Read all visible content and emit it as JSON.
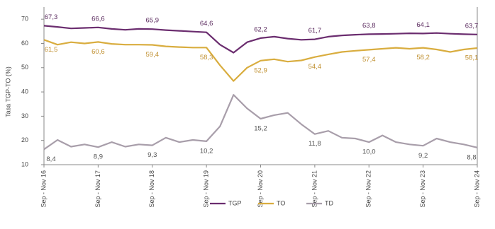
{
  "chart_data": {
    "type": "line",
    "y_label": "Tasa TGP-TO (%)",
    "categories": [
      "Sep - Nov 16",
      null,
      null,
      null,
      "Sep - Nov 17",
      null,
      null,
      null,
      "Sep - Nov 18",
      null,
      null,
      null,
      "Sep - Nov 19",
      null,
      null,
      null,
      "Sep - Nov 20",
      null,
      null,
      null,
      "Sep - Nov 21",
      null,
      null,
      null,
      "Sep - Nov 22",
      null,
      null,
      null,
      "Sep - Nov 23",
      null,
      null,
      null,
      "Sep - Nov 24"
    ],
    "series": [
      {
        "name": "TGP",
        "color": "#6b2d6f",
        "label_color": "#5a2a5e",
        "values": [
          67.3,
          66.8,
          66.2,
          66.4,
          66.6,
          66.0,
          65.6,
          66.0,
          65.9,
          65.5,
          65.2,
          64.9,
          64.6,
          59.5,
          56.2,
          60.5,
          62.2,
          62.8,
          62.0,
          61.5,
          61.7,
          62.8,
          63.3,
          63.6,
          63.8,
          63.9,
          64.0,
          64.2,
          64.1,
          64.3,
          64.0,
          63.8,
          63.7
        ],
        "value_labels": [
          "67,3",
          null,
          null,
          null,
          "66,6",
          null,
          null,
          null,
          "65,9",
          null,
          null,
          null,
          "64,6",
          null,
          null,
          null,
          "62,2",
          null,
          null,
          null,
          "61,7",
          null,
          null,
          null,
          "63,8",
          null,
          null,
          null,
          "64,1",
          null,
          null,
          null,
          "63,7"
        ]
      },
      {
        "name": "TO",
        "color": "#d9ad3f",
        "label_color": "#c09030",
        "values": [
          61.5,
          59.5,
          60.5,
          60.0,
          60.6,
          59.8,
          59.5,
          59.5,
          59.4,
          58.8,
          58.5,
          58.3,
          58.3,
          51.0,
          44.5,
          50.0,
          52.9,
          53.5,
          52.5,
          53.0,
          54.4,
          55.5,
          56.5,
          57.0,
          57.4,
          57.8,
          58.2,
          57.8,
          58.2,
          57.5,
          56.5,
          57.5,
          58.1
        ],
        "value_labels": [
          "61,5",
          null,
          null,
          null,
          "60,6",
          null,
          null,
          null,
          "59,4",
          null,
          null,
          null,
          "58,3",
          null,
          null,
          null,
          "52,9",
          null,
          null,
          null,
          "54,4",
          null,
          null,
          null,
          "57,4",
          null,
          null,
          null,
          "58,2",
          null,
          null,
          null,
          "58,1"
        ]
      },
      {
        "name": "TD",
        "color": "#a89eaa",
        "label_color": "#555555",
        "axis": "y2",
        "values": [
          8.4,
          10.5,
          9.0,
          9.5,
          8.9,
          10.0,
          9.0,
          9.5,
          9.3,
          11.0,
          10.0,
          10.5,
          10.2,
          13.5,
          20.5,
          17.5,
          15.2,
          16.0,
          16.5,
          14.0,
          11.8,
          12.5,
          11.0,
          10.8,
          10.0,
          11.5,
          10.0,
          9.5,
          9.2,
          10.8,
          10.0,
          9.5,
          8.8
        ],
        "value_labels": [
          "8,4",
          null,
          null,
          null,
          "8,9",
          null,
          null,
          null,
          "9,3",
          null,
          null,
          null,
          "10,2",
          null,
          null,
          null,
          "15,2",
          null,
          null,
          null,
          "11,8",
          null,
          null,
          null,
          "10,0",
          null,
          null,
          null,
          "9,2",
          null,
          null,
          null,
          "8,8"
        ]
      }
    ],
    "ylim": [
      10,
      75
    ],
    "yticks": [
      10,
      20,
      30,
      40,
      50,
      60,
      70
    ],
    "y2lim": [
      5,
      40
    ],
    "legend": "bottom"
  }
}
